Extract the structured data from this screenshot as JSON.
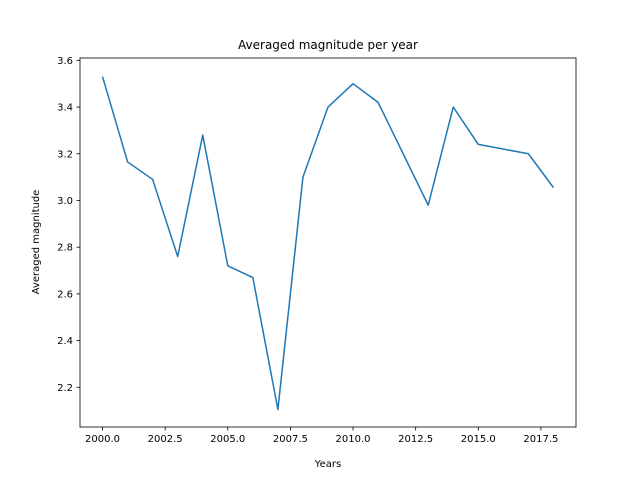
{
  "chart_data": {
    "type": "line",
    "title": "Averaged magnitude per year",
    "xlabel": "Years",
    "ylabel": "Averaged magnitude",
    "xlim": [
      1999.1,
      2018.9
    ],
    "ylim": [
      2.03,
      3.61
    ],
    "xticks": [
      2000.0,
      2002.5,
      2005.0,
      2007.5,
      2010.0,
      2012.5,
      2015.0,
      2017.5
    ],
    "xtick_labels": [
      "2000.0",
      "2002.5",
      "2005.0",
      "2007.5",
      "2010.0",
      "2012.5",
      "2015.0",
      "2017.5"
    ],
    "yticks": [
      2.2,
      2.4,
      2.6,
      2.8,
      3.0,
      3.2,
      3.4,
      3.6
    ],
    "ytick_labels": [
      "2.2",
      "2.4",
      "2.6",
      "2.8",
      "3.0",
      "3.2",
      "3.4",
      "3.6"
    ],
    "grid": false,
    "series": [
      {
        "color": "#1f77b4",
        "x": [
          2000,
          2001,
          2002,
          2003,
          2004,
          2005,
          2006,
          2007,
          2008,
          2009,
          2010,
          2011,
          2013,
          2014,
          2015,
          2017,
          2018
        ],
        "y": [
          3.53,
          3.165,
          3.09,
          2.76,
          3.28,
          2.72,
          2.67,
          2.105,
          3.1,
          3.4,
          3.5,
          3.42,
          2.98,
          3.4,
          3.24,
          3.2,
          3.055
        ]
      }
    ]
  }
}
